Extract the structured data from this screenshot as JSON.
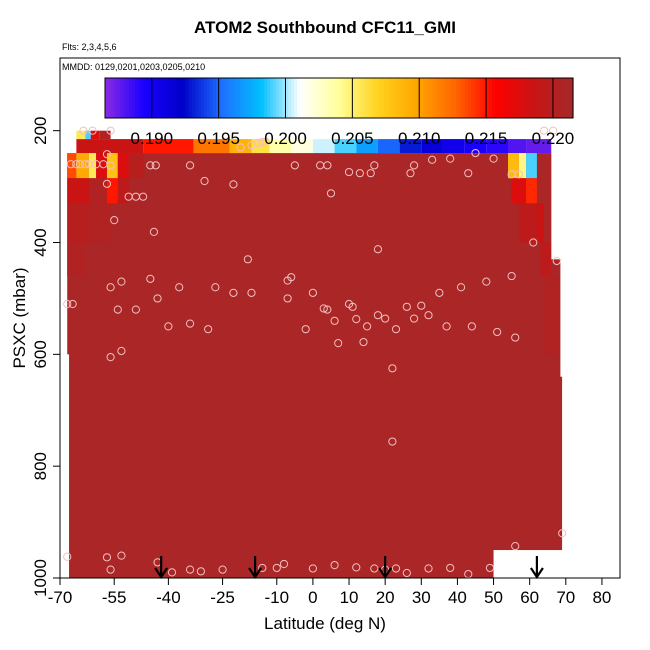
{
  "chart_data": {
    "type": "heatmap",
    "title": "ATOM2 Southbound CFC11_GMI",
    "subtitle": "Flts: 2,3,4,5,6",
    "annotation": "MMDD: 0129,0201,0203,0205,0210",
    "xlabel": "Latitude (deg N)",
    "ylabel": "PSXC (mbar)",
    "xlim": [
      -70,
      85
    ],
    "ylim": [
      1000,
      70
    ],
    "x_ticks": [
      -70,
      -55,
      -40,
      -25,
      -10,
      0,
      10,
      20,
      30,
      40,
      50,
      60,
      70,
      80
    ],
    "y_ticks": [
      200,
      400,
      600,
      800,
      1000
    ],
    "colorbar": {
      "range": [
        0.1865,
        0.2215
      ],
      "tick_values": [
        0.19,
        0.195,
        0.2,
        0.205,
        0.21,
        0.215,
        0.22
      ],
      "tick_labels": [
        "0.190",
        "0.195",
        "0.200",
        "0.205",
        "0.210",
        "0.215",
        "0.220"
      ],
      "colors": [
        "#8a2be2",
        "#1a00ff",
        "#0000c8",
        "#1e70ff",
        "#00bfff",
        "#ffffff",
        "#ffff99",
        "#ffd21e",
        "#ffa500",
        "#ff6400",
        "#ff0000",
        "#c81414",
        "#a52a2a"
      ]
    },
    "background_value": 0.221,
    "cells": [
      {
        "lat": [
          -65.5,
          -47
        ],
        "p": [
          215,
          240
        ],
        "value": 0.2185
      },
      {
        "lat": [
          -47,
          -33
        ],
        "p": [
          215,
          240
        ],
        "value": 0.215
      },
      {
        "lat": [
          -33,
          -23
        ],
        "p": [
          215,
          240
        ],
        "value": 0.212
      },
      {
        "lat": [
          -23,
          -17
        ],
        "p": [
          215,
          240
        ],
        "value": 0.209
      },
      {
        "lat": [
          -17,
          -12
        ],
        "p": [
          215,
          240
        ],
        "value": 0.206
      },
      {
        "lat": [
          -12,
          -6
        ],
        "p": [
          215,
          240
        ],
        "value": 0.2035
      },
      {
        "lat": [
          -6,
          0
        ],
        "p": [
          215,
          240
        ],
        "value": 0.202
      },
      {
        "lat": [
          0,
          6
        ],
        "p": [
          215,
          240
        ],
        "value": 0.2005
      },
      {
        "lat": [
          6,
          12
        ],
        "p": [
          215,
          240
        ],
        "value": 0.199
      },
      {
        "lat": [
          12,
          18
        ],
        "p": [
          215,
          240
        ],
        "value": 0.197
      },
      {
        "lat": [
          18,
          24
        ],
        "p": [
          215,
          240
        ],
        "value": 0.195
      },
      {
        "lat": [
          24,
          30
        ],
        "p": [
          215,
          240
        ],
        "value": 0.193
      },
      {
        "lat": [
          30,
          36
        ],
        "p": [
          215,
          240
        ],
        "value": 0.1915
      },
      {
        "lat": [
          36,
          42
        ],
        "p": [
          215,
          240
        ],
        "value": 0.1905
      },
      {
        "lat": [
          42,
          48
        ],
        "p": [
          215,
          240
        ],
        "value": 0.1895
      },
      {
        "lat": [
          48,
          54
        ],
        "p": [
          215,
          240
        ],
        "value": 0.189
      },
      {
        "lat": [
          54,
          59
        ],
        "p": [
          215,
          240
        ],
        "value": 0.188
      },
      {
        "lat": [
          59,
          66
        ],
        "p": [
          215,
          240
        ],
        "value": 0.1875
      },
      {
        "lat": [
          -65.5,
          -63
        ],
        "p": [
          200,
          215
        ],
        "value": 0.2055
      },
      {
        "lat": [
          -63,
          -61.5
        ],
        "p": [
          200,
          215
        ],
        "value": 0.199
      },
      {
        "lat": [
          -61.5,
          -59
        ],
        "p": [
          200,
          215
        ],
        "value": 0.2175
      },
      {
        "lat": [
          -59,
          -56
        ],
        "p": [
          200,
          215
        ],
        "value": 0.2205
      },
      {
        "lat": [
          -68,
          -65.5
        ],
        "p": [
          240,
          285
        ],
        "value": 0.2135
      },
      {
        "lat": [
          -65.5,
          -62
        ],
        "p": [
          240,
          285
        ],
        "value": 0.2095
      },
      {
        "lat": [
          -62,
          -60
        ],
        "p": [
          240,
          285
        ],
        "value": 0.2055
      },
      {
        "lat": [
          -60,
          -57
        ],
        "p": [
          240,
          285
        ],
        "value": 0.2175
      },
      {
        "lat": [
          -57,
          -54
        ],
        "p": [
          240,
          285
        ],
        "value": 0.208
      },
      {
        "lat": [
          -54,
          -51
        ],
        "p": [
          240,
          285
        ],
        "value": 0.2175
      },
      {
        "lat": [
          -51,
          -47
        ],
        "p": [
          240,
          285
        ],
        "value": 0.22
      },
      {
        "lat": [
          54,
          57
        ],
        "p": [
          240,
          285
        ],
        "value": 0.2085
      },
      {
        "lat": [
          57,
          59
        ],
        "p": [
          240,
          285
        ],
        "value": 0.2045
      },
      {
        "lat": [
          59,
          62
        ],
        "p": [
          240,
          285
        ],
        "value": 0.199
      },
      {
        "lat": [
          -68,
          -62
        ],
        "p": [
          285,
          330
        ],
        "value": 0.2185
      },
      {
        "lat": [
          -62,
          -57
        ],
        "p": [
          285,
          330
        ],
        "value": 0.2205
      },
      {
        "lat": [
          -57,
          -54
        ],
        "p": [
          285,
          330
        ],
        "value": 0.215
      },
      {
        "lat": [
          -54,
          -51
        ],
        "p": [
          285,
          330
        ],
        "value": 0.2195
      },
      {
        "lat": [
          55,
          59
        ],
        "p": [
          285,
          330
        ],
        "value": 0.2175
      },
      {
        "lat": [
          59,
          62
        ],
        "p": [
          285,
          330
        ],
        "value": 0.2145
      },
      {
        "lat": [
          -68,
          -62
        ],
        "p": [
          330,
          400
        ],
        "value": 0.22
      },
      {
        "lat": [
          -62,
          -56
        ],
        "p": [
          330,
          400
        ],
        "value": 0.2205
      },
      {
        "lat": [
          57,
          62
        ],
        "p": [
          330,
          400
        ],
        "value": 0.2195
      },
      {
        "lat": [
          62,
          64
        ],
        "p": [
          330,
          400
        ],
        "value": 0.2185
      },
      {
        "lat": [
          -68,
          -63
        ],
        "p": [
          400,
          460
        ],
        "value": 0.2205
      },
      {
        "lat": [
          63,
          66
        ],
        "p": [
          400,
          460
        ],
        "value": 0.2195
      },
      {
        "lat": [
          64,
          68
        ],
        "p": [
          460,
          600
        ],
        "value": 0.2205
      }
    ],
    "whitespace": [
      {
        "lat": [
          -70,
          -67.5
        ],
        "p": [
          600,
          1000
        ]
      },
      {
        "lat": [
          66,
          85
        ],
        "p": [
          200,
          430
        ]
      },
      {
        "lat": [
          68.5,
          85
        ],
        "p": [
          430,
          640
        ]
      },
      {
        "lat": [
          69,
          85
        ],
        "p": [
          640,
          950
        ]
      },
      {
        "lat": [
          50,
          85
        ],
        "p": [
          950,
          1000
        ]
      },
      {
        "lat": [
          -70,
          -65.5
        ],
        "p": [
          180,
          240
        ]
      },
      {
        "lat": [
          66,
          85
        ],
        "p": [
          180,
          200
        ]
      }
    ],
    "points": [
      [
        -63.5,
        200
      ],
      [
        -61,
        200
      ],
      [
        -57,
        242
      ],
      [
        -56,
        200
      ],
      [
        -67,
        260
      ],
      [
        -65.5,
        260
      ],
      [
        -64.5,
        260
      ],
      [
        -63,
        260
      ],
      [
        -62,
        260
      ],
      [
        -60,
        260
      ],
      [
        -58,
        260
      ],
      [
        -56,
        262
      ],
      [
        -45,
        262
      ],
      [
        -43.5,
        262
      ],
      [
        -34,
        262
      ],
      [
        -20,
        230
      ],
      [
        -17,
        226
      ],
      [
        -15,
        222
      ],
      [
        -14,
        220
      ],
      [
        -13,
        220
      ],
      [
        -5,
        262
      ],
      [
        2,
        262
      ],
      [
        4,
        262
      ],
      [
        17,
        262
      ],
      [
        28,
        262
      ],
      [
        38,
        250
      ],
      [
        45,
        240
      ],
      [
        50,
        250
      ],
      [
        55,
        278
      ],
      [
        57,
        278
      ],
      [
        64,
        200
      ],
      [
        66.5,
        200
      ],
      [
        -57,
        295
      ],
      [
        -51,
        318
      ],
      [
        -49,
        318
      ],
      [
        -47,
        318
      ],
      [
        -30,
        290
      ],
      [
        -22,
        296
      ],
      [
        5,
        312
      ],
      [
        10,
        274
      ],
      [
        13,
        276
      ],
      [
        16,
        276
      ],
      [
        27,
        276
      ],
      [
        33,
        252
      ],
      [
        43,
        276
      ],
      [
        -55,
        360
      ],
      [
        -44,
        381
      ],
      [
        -18,
        430
      ],
      [
        -7,
        468
      ],
      [
        -6,
        462
      ],
      [
        6,
        540
      ],
      [
        10,
        510
      ],
      [
        12,
        537
      ],
      [
        18,
        412
      ],
      [
        -68,
        510
      ],
      [
        -66.5,
        510
      ],
      [
        -56,
        480
      ],
      [
        -54,
        520
      ],
      [
        -53,
        470
      ],
      [
        -49,
        520
      ],
      [
        -45,
        465
      ],
      [
        -43,
        500
      ],
      [
        -37,
        480
      ],
      [
        -34,
        545
      ],
      [
        -27,
        480
      ],
      [
        -22,
        490
      ],
      [
        -17,
        490
      ],
      [
        -7,
        500
      ],
      [
        0,
        490
      ],
      [
        4,
        520
      ],
      [
        7,
        580
      ],
      [
        11,
        515
      ],
      [
        14,
        578
      ],
      [
        15,
        550
      ],
      [
        18,
        530
      ],
      [
        23,
        555
      ],
      [
        26,
        515
      ],
      [
        28,
        536
      ],
      [
        30,
        513
      ],
      [
        32,
        530
      ],
      [
        35,
        490
      ],
      [
        37,
        550
      ],
      [
        41,
        480
      ],
      [
        44,
        550
      ],
      [
        48,
        470
      ],
      [
        51,
        560
      ],
      [
        55,
        460
      ],
      [
        56,
        570
      ],
      [
        61,
        400
      ],
      [
        67.5,
        433
      ],
      [
        -56,
        605
      ],
      [
        -53,
        594
      ],
      [
        -40,
        550
      ],
      [
        -29,
        555
      ],
      [
        -2,
        555
      ],
      [
        3,
        518
      ],
      [
        20,
        536
      ],
      [
        22,
        625
      ],
      [
        22,
        756
      ],
      [
        -68,
        962
      ],
      [
        -57,
        963
      ],
      [
        -56,
        985
      ],
      [
        -53,
        960
      ],
      [
        -43,
        972
      ],
      [
        -39,
        990
      ],
      [
        -34,
        985
      ],
      [
        -31,
        988
      ],
      [
        -25,
        985
      ],
      [
        -14,
        982
      ],
      [
        -10,
        982
      ],
      [
        -8,
        975
      ],
      [
        0,
        983
      ],
      [
        6,
        977
      ],
      [
        12,
        981
      ],
      [
        17,
        983
      ],
      [
        20,
        985
      ],
      [
        23,
        983
      ],
      [
        26,
        991
      ],
      [
        32,
        983
      ],
      [
        38,
        982
      ],
      [
        43,
        993
      ],
      [
        49,
        982
      ],
      [
        56,
        943
      ],
      [
        69,
        920
      ]
    ],
    "arrows_lat": [
      -42,
      -16,
      20,
      62
    ]
  }
}
